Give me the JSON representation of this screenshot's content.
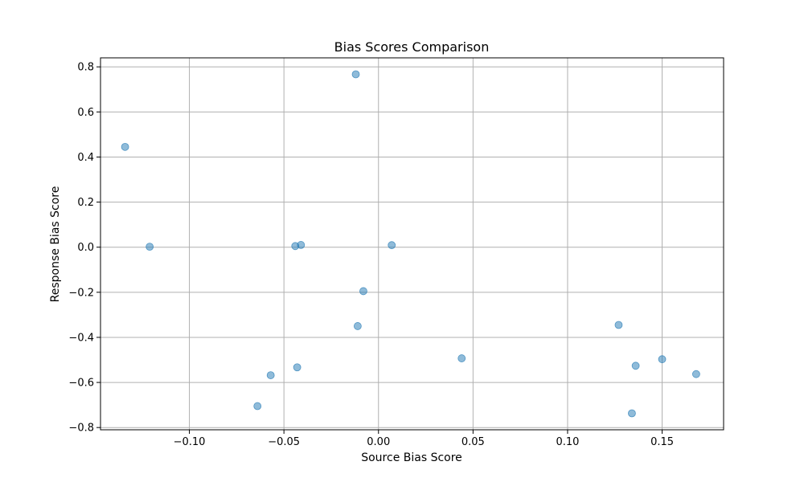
{
  "chart_data": {
    "type": "scatter",
    "title": "Bias Scores Comparison",
    "xlabel": "Source Bias Score",
    "ylabel": "Response Bias Score",
    "xlim": [
      -0.147,
      0.1825
    ],
    "ylim": [
      -0.81,
      0.84
    ],
    "xticks": [
      -0.1,
      -0.05,
      0.0,
      0.05,
      0.1,
      0.15
    ],
    "xtick_labels": [
      "−0.10",
      "−0.05",
      "0.00",
      "0.05",
      "0.10",
      "0.15"
    ],
    "yticks": [
      -0.8,
      -0.6,
      -0.4,
      -0.2,
      0.0,
      0.2,
      0.4,
      0.6,
      0.8
    ],
    "ytick_labels": [
      "−0.8",
      "−0.6",
      "−0.4",
      "−0.2",
      "0.0",
      "0.2",
      "0.4",
      "0.6",
      "0.8"
    ],
    "grid": true,
    "marker_color": "#1f77b4",
    "marker_opacity": 0.5,
    "points": [
      {
        "x": -0.134,
        "y": 0.445
      },
      {
        "x": -0.121,
        "y": 0.002
      },
      {
        "x": -0.044,
        "y": 0.005
      },
      {
        "x": -0.041,
        "y": 0.01
      },
      {
        "x": -0.012,
        "y": 0.767
      },
      {
        "x": -0.008,
        "y": -0.195
      },
      {
        "x": -0.011,
        "y": -0.35
      },
      {
        "x": 0.007,
        "y": 0.009
      },
      {
        "x": -0.043,
        "y": -0.533
      },
      {
        "x": -0.057,
        "y": -0.568
      },
      {
        "x": -0.064,
        "y": -0.705
      },
      {
        "x": 0.044,
        "y": -0.493
      },
      {
        "x": 0.127,
        "y": -0.345
      },
      {
        "x": 0.136,
        "y": -0.526
      },
      {
        "x": 0.15,
        "y": -0.497
      },
      {
        "x": 0.168,
        "y": -0.563
      },
      {
        "x": 0.134,
        "y": -0.737
      }
    ]
  }
}
